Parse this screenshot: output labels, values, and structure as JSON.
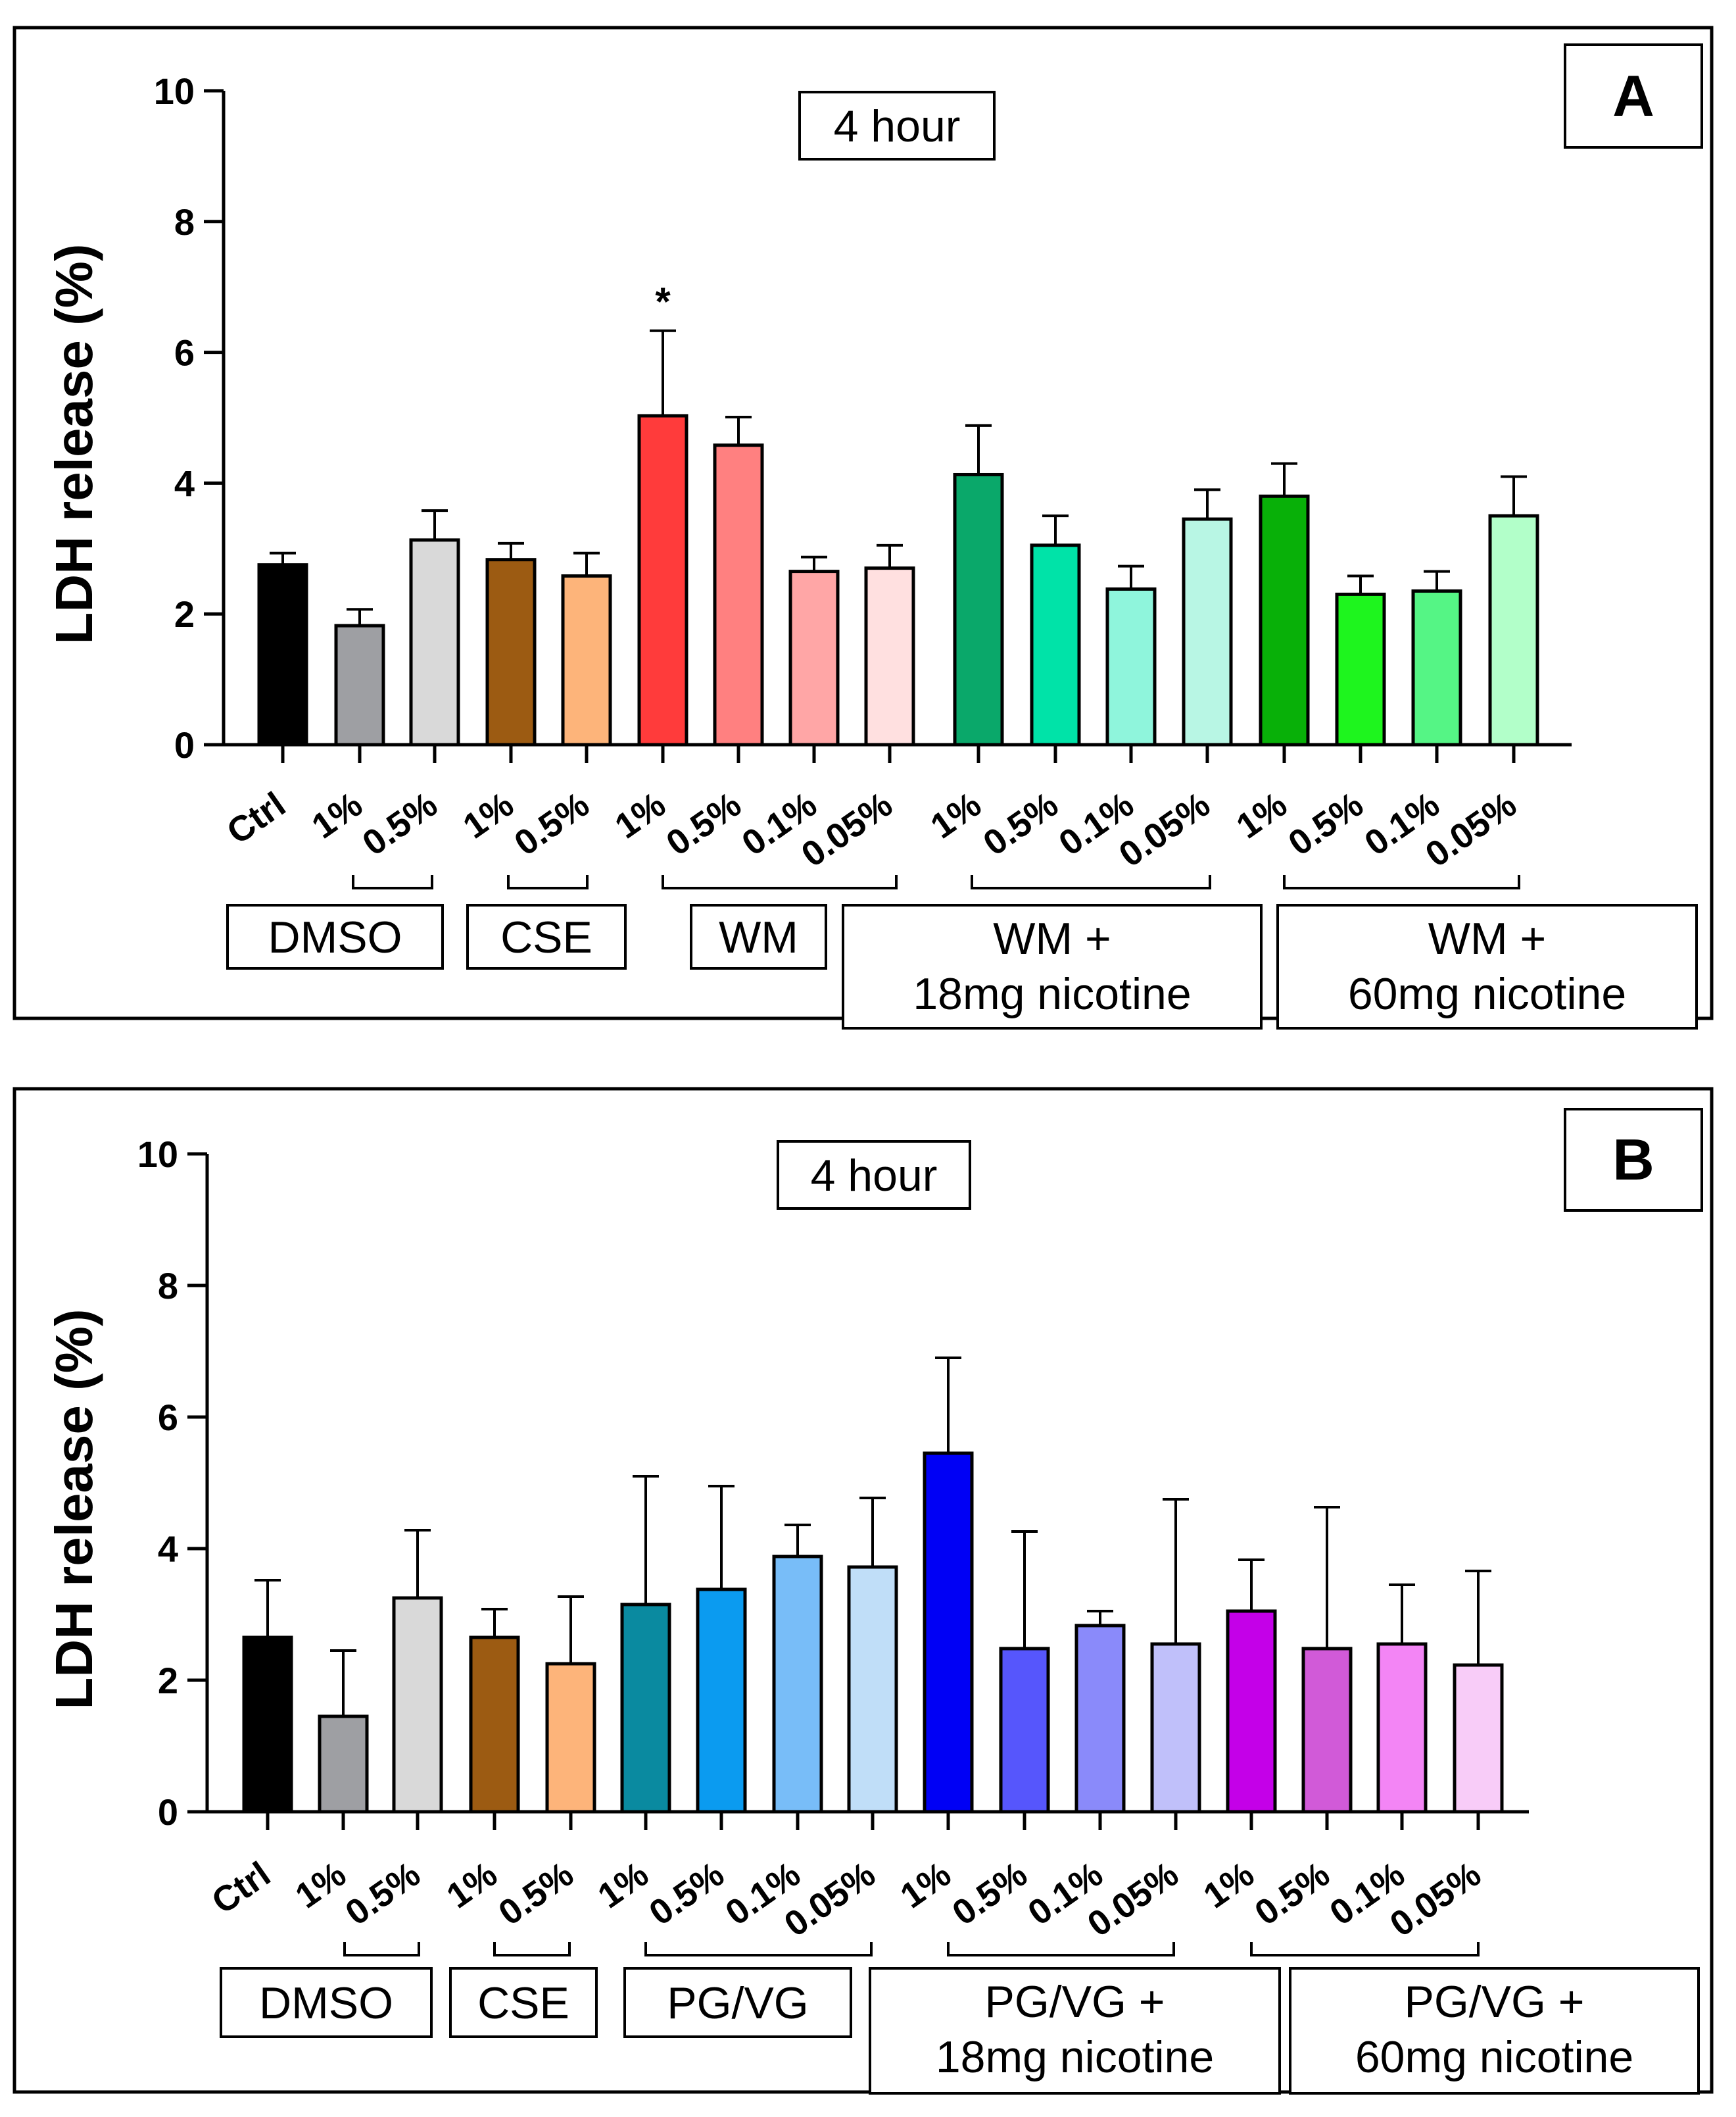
{
  "chart_data": [
    {
      "panel": "A",
      "type": "bar",
      "time_label": "4 hour",
      "xlabel": "",
      "ylabel": "LDH release (%)",
      "ylim": [
        0,
        10
      ],
      "yticks": [
        "0",
        "2",
        "4",
        "6",
        "8",
        "10"
      ],
      "categories": [
        "Ctrl",
        "1%",
        "0.5%",
        "1%",
        "0.5%",
        "1%",
        "0.5%",
        "0.1%",
        "0.05%",
        "1%",
        "0.5%",
        "0.1%",
        "0.05%",
        "1%",
        "0.5%",
        "0.1%",
        "0.05%"
      ],
      "values": [
        2.75,
        1.82,
        3.13,
        2.83,
        2.58,
        5.03,
        4.58,
        2.65,
        2.7,
        4.13,
        3.05,
        2.38,
        3.45,
        3.8,
        2.3,
        2.35,
        3.5
      ],
      "errors": [
        0.18,
        0.25,
        0.45,
        0.25,
        0.35,
        1.3,
        0.43,
        0.22,
        0.35,
        0.75,
        0.45,
        0.35,
        0.45,
        0.5,
        0.28,
        0.3,
        0.6
      ],
      "colors": [
        "#000000",
        "#9e9fa3",
        "#d9d9d9",
        "#9c5b12",
        "#fdb47a",
        "#ff3b3b",
        "#ff8080",
        "#ffa6a6",
        "#ffe0e0",
        "#0aa86a",
        "#00e3a8",
        "#8ff5dc",
        "#b8f6e4",
        "#08b008",
        "#1ef51e",
        "#55f585",
        "#b2ffc9"
      ],
      "annotations": [
        {
          "category_index": 5,
          "text": "*"
        }
      ],
      "group_labels": [
        {
          "label": "DMSO",
          "line2": "",
          "from": 1,
          "to": 2
        },
        {
          "label": "CSE",
          "line2": "",
          "from": 3,
          "to": 4
        },
        {
          "label": "WM",
          "line2": "",
          "from": 5,
          "to": 8
        },
        {
          "label": "WM +",
          "line2": "18mg nicotine",
          "from": 9,
          "to": 12
        },
        {
          "label": "WM +",
          "line2": "60mg nicotine",
          "from": 13,
          "to": 16
        }
      ]
    },
    {
      "panel": "B",
      "type": "bar",
      "time_label": "4 hour",
      "xlabel": "",
      "ylabel": "LDH release (%)",
      "ylim": [
        0,
        10
      ],
      "yticks": [
        "0",
        "2",
        "4",
        "6",
        "8",
        "10"
      ],
      "categories": [
        "Ctrl",
        "1%",
        "0.5%",
        "1%",
        "0.5%",
        "1%",
        "0.5%",
        "0.1%",
        "0.05%",
        "1%",
        "0.5%",
        "0.1%",
        "0.05%",
        "1%",
        "0.5%",
        "0.1%",
        "0.05%"
      ],
      "values": [
        2.65,
        1.45,
        3.25,
        2.65,
        2.25,
        3.15,
        3.38,
        3.88,
        3.72,
        5.45,
        2.48,
        2.83,
        2.55,
        3.05,
        2.48,
        2.55,
        2.23
      ],
      "errors": [
        0.87,
        1.0,
        1.03,
        0.43,
        1.02,
        1.95,
        1.57,
        0.48,
        1.05,
        1.45,
        1.78,
        0.22,
        2.2,
        0.78,
        2.15,
        0.9,
        1.43
      ],
      "colors": [
        "#000000",
        "#9e9fa3",
        "#d9d9d9",
        "#9c5b12",
        "#fdb47a",
        "#0a8aa0",
        "#0b9bf0",
        "#78bdf8",
        "#c0def8",
        "#0000f5",
        "#5656fc",
        "#8a8afa",
        "#c0c0fa",
        "#c400e8",
        "#d15ad8",
        "#f385f5",
        "#f8ccf8"
      ],
      "annotations": [],
      "group_labels": [
        {
          "label": "DMSO",
          "line2": "",
          "from": 1,
          "to": 2
        },
        {
          "label": "CSE",
          "line2": "",
          "from": 3,
          "to": 4
        },
        {
          "label": "PG/VG",
          "line2": "",
          "from": 5,
          "to": 8
        },
        {
          "label": "PG/VG +",
          "line2": "18mg nicotine",
          "from": 9,
          "to": 12
        },
        {
          "label": "PG/VG +",
          "line2": "60mg nicotine",
          "from": 13,
          "to": 16
        }
      ]
    }
  ]
}
